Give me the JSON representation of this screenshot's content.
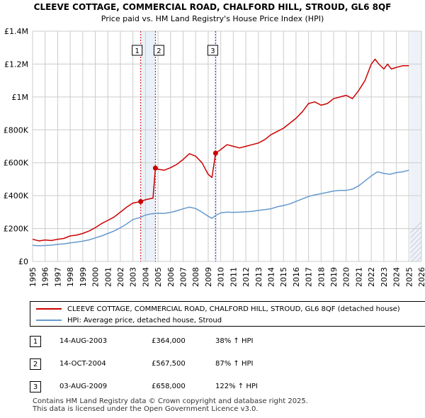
{
  "colors": {
    "red": "#cc0000",
    "blue": "#6699cc",
    "grid": "#cccccc",
    "band": "#dde8f5"
  },
  "chart_data": {
    "type": "line",
    "title": "CLEEVE COTTAGE, COMMERCIAL ROAD, CHALFORD HILL, STROUD, GL6 8QF",
    "subtitle": "Price paid vs. HM Land Registry's House Price Index (HPI)",
    "xlim": [
      1995,
      2026
    ],
    "ylim": [
      0,
      1400000
    ],
    "y_ticks": [
      0,
      200000,
      400000,
      600000,
      800000,
      1000000,
      1200000,
      1400000
    ],
    "y_tick_labels": [
      "£0",
      "£200K",
      "£400K",
      "£600K",
      "£800K",
      "£1M",
      "£1.2M",
      "£1.4M"
    ],
    "x_ticks": [
      "1995",
      "1996",
      "1997",
      "1998",
      "1999",
      "2000",
      "2001",
      "2002",
      "2003",
      "2004",
      "2005",
      "2006",
      "2007",
      "2008",
      "2009",
      "2010",
      "2011",
      "2012",
      "2013",
      "2014",
      "2015",
      "2016",
      "2017",
      "2018",
      "2019",
      "2020",
      "2021",
      "2022",
      "2023",
      "2024",
      "2025",
      "2026"
    ],
    "shaded_region": {
      "from": 2025.1,
      "to": 2026
    },
    "series": [
      {
        "name": "CLEEVE COTTAGE, COMMERCIAL ROAD, CHALFORD HILL, STROUD, GL6 8QF (detached house)",
        "color": "#cc0000",
        "x": [
          1995.0,
          1995.5,
          1996.0,
          1996.5,
          1997.0,
          1997.5,
          1998.0,
          1998.5,
          1999.0,
          1999.5,
          2000.0,
          2000.5,
          2001.0,
          2001.5,
          2002.0,
          2002.5,
          2003.0,
          2003.6,
          2004.0,
          2004.6,
          2004.79,
          2005.0,
          2005.5,
          2006.0,
          2006.5,
          2007.0,
          2007.5,
          2008.0,
          2008.5,
          2009.0,
          2009.3,
          2009.59,
          2010.0,
          2010.5,
          2011.0,
          2011.5,
          2012.0,
          2012.5,
          2013.0,
          2013.5,
          2014.0,
          2014.5,
          2015.0,
          2015.5,
          2016.0,
          2016.5,
          2017.0,
          2017.5,
          2018.0,
          2018.5,
          2019.0,
          2019.5,
          2020.0,
          2020.5,
          2021.0,
          2021.5,
          2022.0,
          2022.3,
          2022.6,
          2023.0,
          2023.3,
          2023.6,
          2024.0,
          2024.5,
          2025.0
        ],
        "y": [
          135000,
          125000,
          130000,
          127000,
          135000,
          140000,
          155000,
          160000,
          170000,
          185000,
          205000,
          230000,
          250000,
          270000,
          300000,
          330000,
          355000,
          364000,
          375000,
          385000,
          567500,
          560000,
          555000,
          570000,
          590000,
          620000,
          655000,
          640000,
          600000,
          530000,
          510000,
          658000,
          680000,
          710000,
          700000,
          690000,
          700000,
          710000,
          720000,
          740000,
          770000,
          790000,
          810000,
          840000,
          870000,
          910000,
          960000,
          970000,
          950000,
          960000,
          990000,
          1000000,
          1010000,
          990000,
          1040000,
          1100000,
          1200000,
          1230000,
          1200000,
          1170000,
          1200000,
          1170000,
          1180000,
          1190000,
          1190000
        ],
        "markers": [
          {
            "x": 2003.62,
            "y": 364000
          },
          {
            "x": 2004.79,
            "y": 567500
          },
          {
            "x": 2009.59,
            "y": 658000
          }
        ]
      },
      {
        "name": "HPI: Average price, detached house, Stroud",
        "color": "#6699cc",
        "x": [
          1995.0,
          1995.5,
          1996.0,
          1996.5,
          1997.0,
          1997.5,
          1998.0,
          1998.5,
          1999.0,
          1999.5,
          2000.0,
          2000.5,
          2001.0,
          2001.5,
          2002.0,
          2002.5,
          2003.0,
          2003.6,
          2004.0,
          2004.5,
          2005.0,
          2005.5,
          2006.0,
          2006.5,
          2007.0,
          2007.5,
          2008.0,
          2008.5,
          2009.0,
          2009.3,
          2009.6,
          2010.0,
          2010.5,
          2011.0,
          2011.5,
          2012.0,
          2012.5,
          2013.0,
          2013.5,
          2014.0,
          2014.5,
          2015.0,
          2015.5,
          2016.0,
          2016.5,
          2017.0,
          2017.5,
          2018.0,
          2018.5,
          2019.0,
          2019.5,
          2020.0,
          2020.5,
          2021.0,
          2021.5,
          2022.0,
          2022.5,
          2023.0,
          2023.5,
          2024.0,
          2024.5,
          2025.0
        ],
        "y": [
          98000,
          95000,
          97000,
          99000,
          104000,
          107000,
          113000,
          117000,
          123000,
          131000,
          143000,
          155000,
          170000,
          185000,
          205000,
          228000,
          255000,
          268000,
          282000,
          290000,
          293000,
          292000,
          298000,
          308000,
          320000,
          330000,
          322000,
          300000,
          275000,
          262000,
          280000,
          295000,
          300000,
          298000,
          300000,
          302000,
          305000,
          310000,
          315000,
          320000,
          332000,
          340000,
          350000,
          365000,
          380000,
          395000,
          405000,
          412000,
          420000,
          428000,
          432000,
          432000,
          440000,
          460000,
          490000,
          520000,
          545000,
          535000,
          530000,
          540000,
          545000,
          555000
        ]
      }
    ],
    "annotations": [
      {
        "label": "1",
        "x": 2003.62
      },
      {
        "label": "2",
        "x": 2004.79
      },
      {
        "label": "3",
        "x": 2009.59
      }
    ]
  },
  "legend": {
    "property": "CLEEVE COTTAGE, COMMERCIAL ROAD, CHALFORD HILL, STROUD, GL6 8QF (detached house)",
    "hpi": "HPI: Average price, detached house, Stroud"
  },
  "sales": [
    {
      "num": "1",
      "date": "14-AUG-2003",
      "price": "£364,000",
      "hpi": "38% ↑ HPI"
    },
    {
      "num": "2",
      "date": "14-OCT-2004",
      "price": "£567,500",
      "hpi": "87% ↑ HPI"
    },
    {
      "num": "3",
      "date": "03-AUG-2009",
      "price": "£658,000",
      "hpi": "122% ↑ HPI"
    }
  ],
  "footer": {
    "line1": "Contains HM Land Registry data © Crown copyright and database right 2025.",
    "line2": "This data is licensed under the Open Government Licence v3.0."
  }
}
